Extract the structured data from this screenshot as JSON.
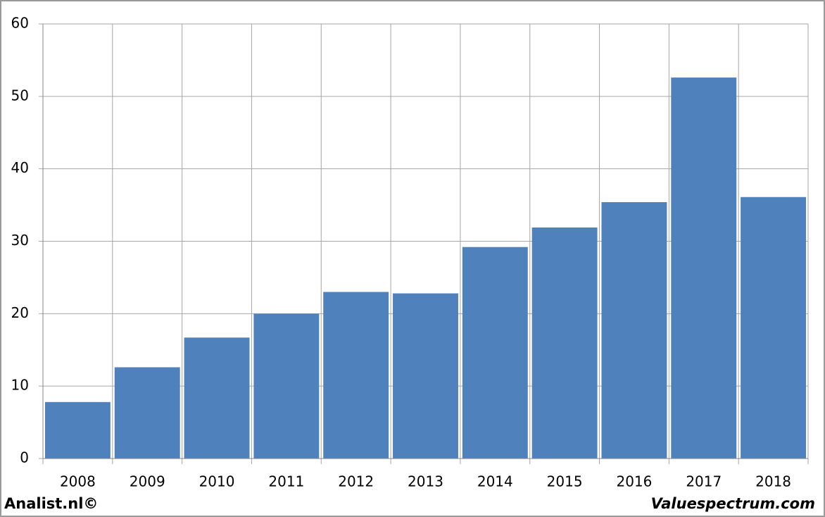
{
  "chart_data": {
    "type": "bar",
    "categories": [
      "2008",
      "2009",
      "2010",
      "2011",
      "2012",
      "2013",
      "2014",
      "2015",
      "2016",
      "2017",
      "2018"
    ],
    "values": [
      7.8,
      12.6,
      16.7,
      20.0,
      23.0,
      22.8,
      29.2,
      31.9,
      35.4,
      52.6,
      36.1
    ],
    "color": "#4f81bd",
    "ylim": [
      0,
      60
    ],
    "yticks": [
      0,
      10,
      20,
      30,
      40,
      50,
      60
    ],
    "grid": true
  },
  "footer": {
    "left": "Analist.nl©",
    "right": "Valuespectrum.com"
  }
}
